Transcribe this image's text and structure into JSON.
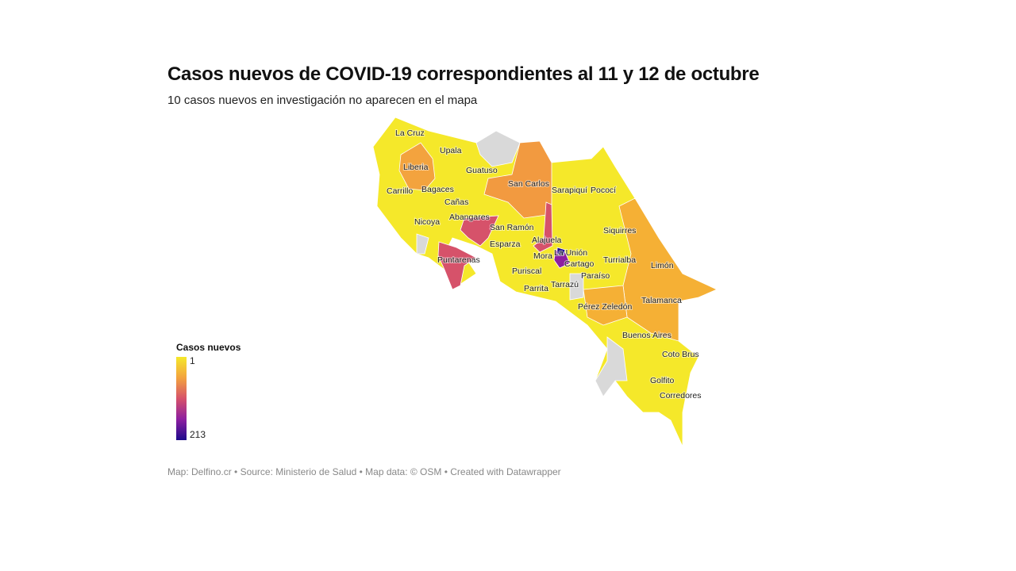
{
  "title": "Casos nuevos de COVID-19 correspondientes al 11 y 12 de octubre",
  "subtitle": "10 casos nuevos en investigación no aparecen en el mapa",
  "legend": {
    "title": "Casos nuevos",
    "min": "1",
    "max": "213",
    "colors": [
      "#f5e82a",
      "#f3a33e",
      "#d6526a",
      "#8d1fa0",
      "#1e0a8c"
    ],
    "no_data_color": "#d9d9d9"
  },
  "map": {
    "region": "Costa Rica",
    "labels": [
      "La Cruz",
      "Upala",
      "Liberia",
      "Guatuso",
      "San Carlos",
      "Sarapiquí",
      "Pococí",
      "Carrillo",
      "Bagaces",
      "Cañas",
      "Nicoya",
      "Abangares",
      "San Ramón",
      "Siquirres",
      "Esparza",
      "Alajuela",
      "La Unión",
      "Mora",
      "Cartago",
      "Turrialba",
      "Limón",
      "Puntarenas",
      "Puriscal",
      "Paraíso",
      "Parrita",
      "Tarrazú",
      "Talamanca",
      "Pérez Zeledón",
      "Buenos Aires",
      "Coto Brus",
      "Golfito",
      "Corredores"
    ]
  },
  "footer": "Map: Delfino.cr • Source: Ministerio de Salud • Map data: © OSM • Created with Datawrapper"
}
